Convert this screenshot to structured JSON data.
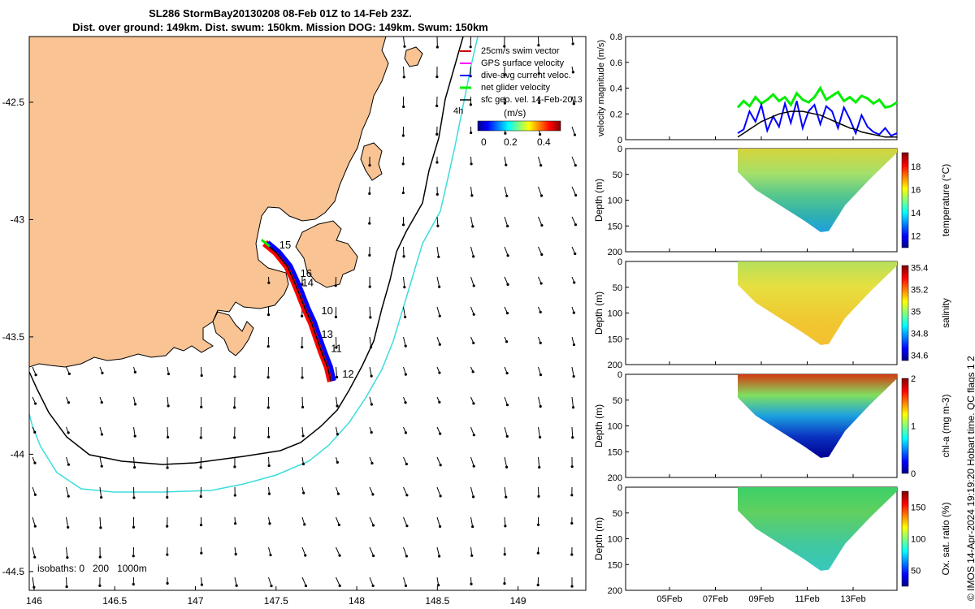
{
  "title": {
    "line1": "SL286 StormBay20130208 08-Feb 01Z to 14-Feb 23Z.",
    "line2": "Dist. over ground: 149km. Dist. swum: 150km. Mission DOG: 149km. Swum: 150km"
  },
  "colors": {
    "land": "#f9c393",
    "isobath_200": "#000000",
    "isobath_1000": "#3cdcdc",
    "track_red": "#ff0000",
    "track_blue": "#0000ff",
    "track_green": "#00ee00",
    "gps_magenta": "#ff00ff"
  },
  "chart_data": [
    {
      "type": "scatter",
      "subtype": "map",
      "x_ticks": [
        "146",
        "146.5",
        "147",
        "147.5",
        "148",
        "148.5",
        "149"
      ],
      "y_ticks": [
        "-42.5",
        "-43",
        "-43.5",
        "-44",
        "-44.5"
      ],
      "xlim": [
        145.97,
        149.42
      ],
      "ylim": [
        -44.58,
        -42.22
      ],
      "legend": {
        "placement": "top-right",
        "items": [
          {
            "label": "25cm/s swim vector",
            "color": "#cc0000"
          },
          {
            "label": "GPS surface velocity",
            "color": "#ff00ff"
          },
          {
            "label": "dive-avg current veloc.",
            "color": "#0000ff"
          },
          {
            "label": "net glider velocity",
            "color": "#00ee00"
          },
          {
            "label": "sfc geo. vel. 14-Feb-2013",
            "color": "#000000"
          }
        ]
      },
      "colorbar": {
        "unit": "(m/s)",
        "ticks": [
          "0",
          "0.2",
          "0.4"
        ],
        "range": [
          0,
          0.45
        ]
      },
      "arrow_annotation": "4h",
      "isobaths_label": "isobaths: 0   200   1000m",
      "day_labels": [
        {
          "text": "15",
          "lon": 147.52,
          "lat": -43.11
        },
        {
          "text": "16",
          "lon": 147.65,
          "lat": -43.23
        },
        {
          "text": "14",
          "lon": 147.66,
          "lat": -43.27
        },
        {
          "text": "10",
          "lon": 147.78,
          "lat": -43.39
        },
        {
          "text": "13",
          "lon": 147.78,
          "lat": -43.49
        },
        {
          "text": "11",
          "lon": 147.84,
          "lat": -43.55
        },
        {
          "text": "12",
          "lon": 147.91,
          "lat": -43.66
        }
      ],
      "glider_track": [
        [
          147.43,
          -43.1
        ],
        [
          147.5,
          -43.14
        ],
        [
          147.57,
          -43.2
        ],
        [
          147.61,
          -43.26
        ],
        [
          147.64,
          -43.31
        ],
        [
          147.68,
          -43.38
        ],
        [
          147.72,
          -43.44
        ],
        [
          147.75,
          -43.5
        ],
        [
          147.78,
          -43.56
        ],
        [
          147.82,
          -43.63
        ],
        [
          147.84,
          -43.69
        ]
      ]
    },
    {
      "type": "line",
      "ylabel": "velocity magnitude (m/s)",
      "ylim": [
        0,
        0.8
      ],
      "y_ticks": [
        "0",
        "0.2",
        "0.4",
        "0.6",
        "0.8"
      ],
      "series": [
        {
          "color": "#00ee00",
          "values": [
            0.25,
            0.3,
            0.26,
            0.33,
            0.28,
            0.31,
            0.35,
            0.3,
            0.33,
            0.27,
            0.36,
            0.31,
            0.29,
            0.33,
            0.4,
            0.31,
            0.34,
            0.37,
            0.3,
            0.33,
            0.29,
            0.34,
            0.32,
            0.28,
            0.31,
            0.25,
            0.26,
            0.29
          ]
        },
        {
          "color": "#0000ff",
          "values": [
            0.05,
            0.08,
            0.22,
            0.14,
            0.27,
            0.07,
            0.18,
            0.1,
            0.28,
            0.13,
            0.3,
            0.09,
            0.22,
            0.27,
            0.12,
            0.26,
            0.22,
            0.09,
            0.25,
            0.16,
            0.05,
            0.19,
            0.1,
            0.06,
            0.04,
            0.09,
            0.03,
            0.05
          ]
        },
        {
          "color": "#000000",
          "values": [
            0.02,
            0.05,
            0.08,
            0.11,
            0.14,
            0.16,
            0.18,
            0.2,
            0.21,
            0.22,
            0.22,
            0.22,
            0.21,
            0.2,
            0.19,
            0.17,
            0.15,
            0.13,
            0.11,
            0.09,
            0.08,
            0.06,
            0.05,
            0.04,
            0.03,
            0.02,
            0.02,
            0.02
          ]
        }
      ]
    },
    {
      "type": "heatmap",
      "ylabel": "Depth (m)",
      "y_ticks": [
        "0",
        "50",
        "100",
        "150",
        "200"
      ],
      "ylim": [
        0,
        200
      ],
      "colorbar_label": "temperature (°C)",
      "colorbar_ticks": [
        "12",
        "14",
        "16",
        "18"
      ],
      "range": [
        11,
        19.2
      ]
    },
    {
      "type": "heatmap",
      "ylabel": "Depth (m)",
      "y_ticks": [
        "0",
        "50",
        "100",
        "150",
        "200"
      ],
      "ylim": [
        0,
        200
      ],
      "colorbar_label": "salinity",
      "colorbar_ticks": [
        "34.6",
        "34.8",
        "35",
        "35.2",
        "35.4"
      ],
      "range": [
        34.55,
        35.42
      ]
    },
    {
      "type": "heatmap",
      "ylabel": "Depth (m)",
      "y_ticks": [
        "0",
        "50",
        "100",
        "150",
        "200"
      ],
      "ylim": [
        0,
        200
      ],
      "colorbar_label": "chl-a (mg m-3)",
      "colorbar_ticks": [
        "0",
        "1",
        "2"
      ],
      "range": [
        0,
        2
      ]
    },
    {
      "type": "heatmap",
      "ylabel": "Depth (m)",
      "y_ticks": [
        "0",
        "50",
        "100",
        "150",
        "200"
      ],
      "ylim": [
        0,
        200
      ],
      "colorbar_label": "Ox. sat. ratio (%)",
      "colorbar_ticks": [
        "50",
        "100",
        "150"
      ],
      "range": [
        25,
        175
      ],
      "x_ticks": [
        "05Feb",
        "07Feb",
        "09Feb",
        "11Feb",
        "13Feb"
      ]
    }
  ],
  "footer": "© IMOS 14-Apr-2024 19:19:20 Hobart time. QC flags 1  2"
}
